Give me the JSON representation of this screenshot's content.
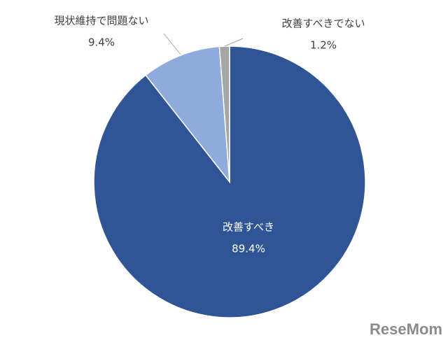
{
  "chart_data": {
    "type": "pie",
    "categories": [
      "改善すべき",
      "現状維持で問題ない",
      "改善すべきでない"
    ],
    "values": [
      89.4,
      9.4,
      1.2
    ],
    "value_labels": [
      "89.4%",
      "9.4%",
      "1.2%"
    ],
    "colors": [
      "#2f5597",
      "#8faadc",
      "#a6a6a6"
    ],
    "start_angle": 0,
    "direction": "clockwise",
    "watermark": "ReseMom"
  }
}
